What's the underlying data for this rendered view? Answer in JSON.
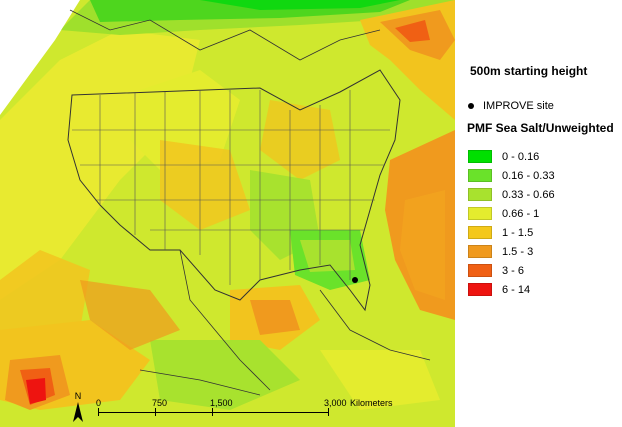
{
  "legend": {
    "height_title": "500m starting height",
    "site_label": "IMPROVE site",
    "layer_title": "PMF Sea Salt/Unweighted",
    "classes": [
      {
        "label": "0 - 0.16",
        "color": "#00e000"
      },
      {
        "label": "0.16 - 0.33",
        "color": "#6ae22a"
      },
      {
        "label": "0.33 - 0.66",
        "color": "#a8e22e"
      },
      {
        "label": "0.66 - 1",
        "color": "#e4ec2e"
      },
      {
        "label": "1 - 1.5",
        "color": "#f4c81a"
      },
      {
        "label": "1.5 - 3",
        "color": "#f09a1e"
      },
      {
        "label": "3 - 6",
        "color": "#f06014"
      },
      {
        "label": "6 - 14",
        "color": "#ee1410"
      }
    ]
  },
  "north_arrow": {
    "label": "N"
  },
  "scale_bar": {
    "labels": [
      "0",
      "750",
      "1,500",
      "3,000"
    ],
    "unit": "Kilometers"
  },
  "map": {
    "improve_site": {
      "name": "IMPROVE site"
    }
  }
}
